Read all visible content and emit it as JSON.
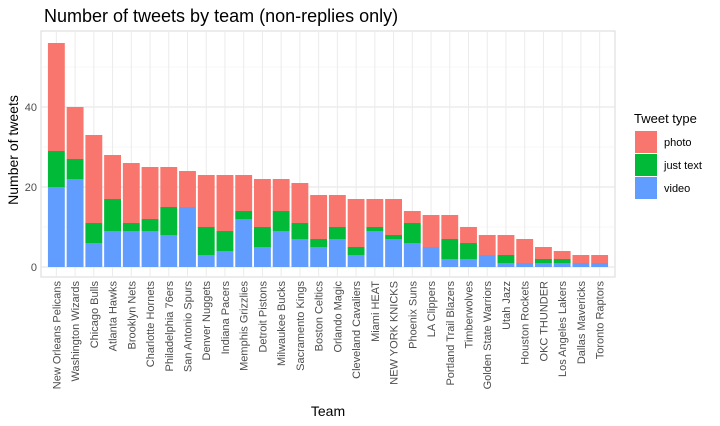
{
  "chart_data": {
    "type": "bar",
    "stacked": true,
    "title": "Number of tweets by team (non-replies only)",
    "xlabel": "Team",
    "ylabel": "Number of tweets",
    "ylim": [
      0,
      59
    ],
    "yticks": [
      0,
      20,
      40
    ],
    "grid": true,
    "legend": {
      "title": "Tweet type",
      "placement": "right"
    },
    "categories": [
      "New Orleans Pelicans",
      "Washington Wizards",
      "Chicago Bulls",
      "Atlanta Hawks",
      "Brooklyn Nets",
      "Charlotte Hornets",
      "Philadelphia 76ers",
      "San Antonio Spurs",
      "Denver Nuggets",
      "Indiana Pacers",
      "Memphis Grizzlies",
      "Detroit Pistons",
      "Milwaukee Bucks",
      "Sacramento Kings",
      "Boston Celtics",
      "Orlando Magic",
      "Cleveland Cavaliers",
      "Miami HEAT",
      "NEW YORK KNICKS",
      "Phoenix Suns",
      "LA Clippers",
      "Portland Trail Blazers",
      "Timberwolves",
      "Golden State Warriors",
      "Utah Jazz",
      "Houston Rockets",
      "OKC THUNDER",
      "Los Angeles Lakers",
      "Dallas Mavericks",
      "Toronto Raptors"
    ],
    "series": [
      {
        "name": "video",
        "color": "#619CFF",
        "values": [
          20,
          22,
          6,
          9,
          9,
          9,
          8,
          15,
          3,
          4,
          12,
          5,
          9,
          7,
          5,
          7,
          3,
          9,
          7,
          6,
          5,
          2,
          2,
          3,
          1,
          1,
          1,
          1,
          1,
          1
        ]
      },
      {
        "name": "just text",
        "color": "#00BA38",
        "values": [
          9,
          5,
          5,
          8,
          2,
          3,
          7,
          0,
          7,
          5,
          2,
          5,
          5,
          4,
          2,
          3,
          2,
          1,
          1,
          5,
          0,
          5,
          4,
          0,
          2,
          0,
          1,
          1,
          0,
          0
        ]
      },
      {
        "name": "photo",
        "color": "#F8766D",
        "values": [
          27,
          13,
          22,
          11,
          15,
          13,
          10,
          9,
          13,
          14,
          9,
          12,
          8,
          10,
          11,
          8,
          12,
          7,
          9,
          3,
          8,
          6,
          4,
          5,
          5,
          6,
          3,
          2,
          2,
          2
        ]
      }
    ],
    "legend_order": [
      "photo",
      "just text",
      "video"
    ]
  }
}
